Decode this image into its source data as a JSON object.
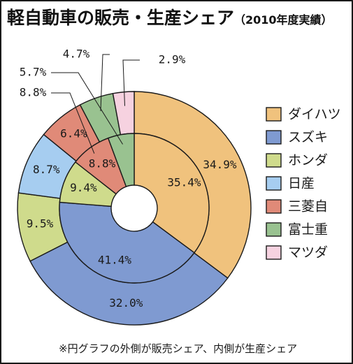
{
  "header": {
    "title": "軽自動車の販売・生産シェア",
    "subtitle": "（2010年度実績）"
  },
  "footnote": "※円グラフの外側が販売シェア、内側が生産シェア",
  "chart_data": {
    "type": "pie",
    "title": "軽自動車の販売・生産シェア",
    "subtitle": "（2010年度実績）",
    "legend": "right",
    "categories": [
      "ダイハツ",
      "スズキ",
      "ホンダ",
      "日産",
      "三菱自",
      "富士重",
      "マツダ"
    ],
    "colors": [
      "#f0c27d",
      "#7f9ad1",
      "#cfdb8c",
      "#a6cdf0",
      "#e08a78",
      "#99c290",
      "#f6d2e0"
    ],
    "series": [
      {
        "name": "販売シェア",
        "values": [
          34.9,
          32.0,
          9.5,
          8.7,
          6.4,
          4.7,
          2.9
        ],
        "labels": [
          "34.9%",
          "32.0%",
          "9.5%",
          "8.7%",
          "6.4%",
          "4.7%",
          "2.9%"
        ]
      },
      {
        "name": "生産シェア",
        "values": [
          35.4,
          41.4,
          9.4,
          0,
          8.8,
          5.7,
          0
        ],
        "labels": [
          "35.4%",
          "41.4%",
          "9.4%",
          "",
          "8.8%",
          "5.7%",
          ""
        ]
      }
    ]
  }
}
